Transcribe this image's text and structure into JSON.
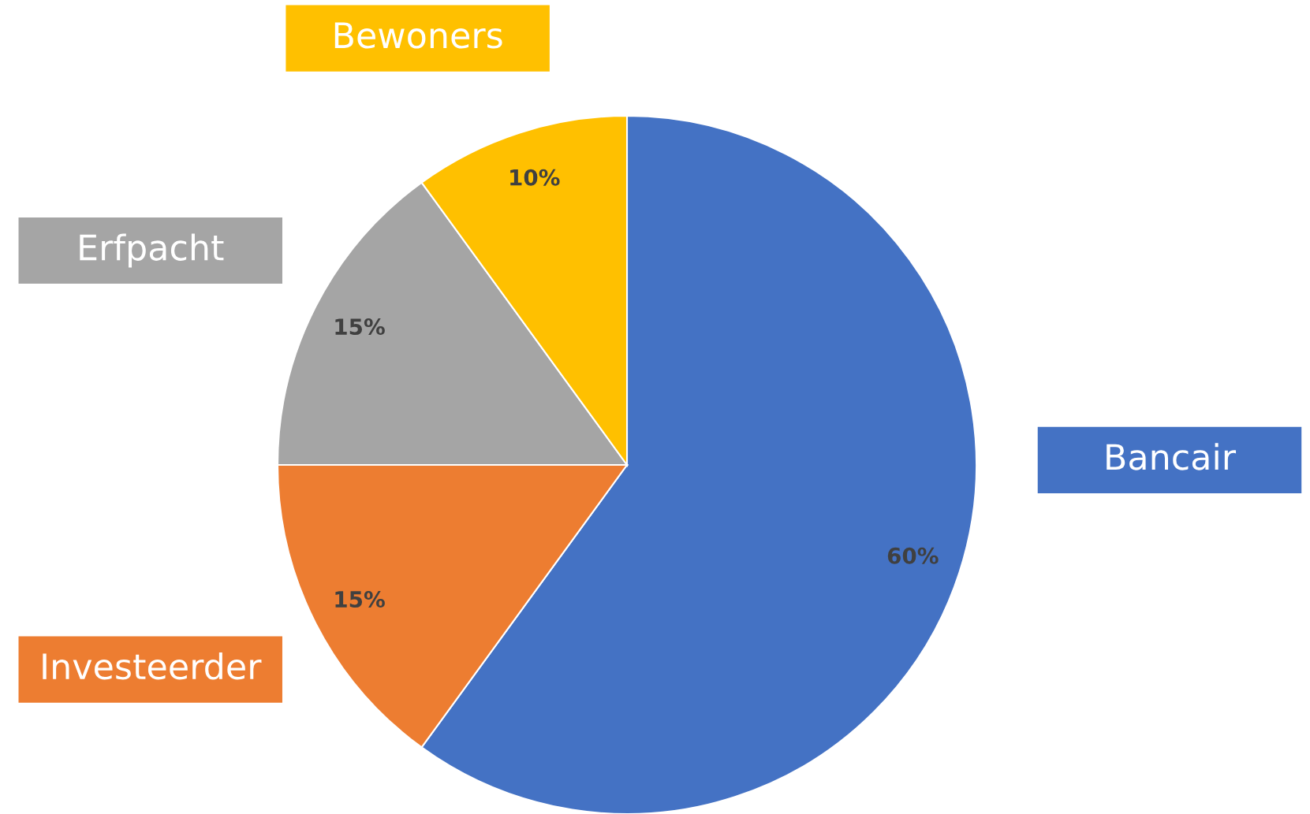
{
  "chart_data": {
    "type": "pie",
    "categories": [
      "Bancair",
      "Investeerder",
      "Erfpacht",
      "Bewoners"
    ],
    "values": [
      60,
      15,
      15,
      10
    ],
    "colors": [
      "#4472c4",
      "#ed7d31",
      "#a5a5a5",
      "#ffc000"
    ],
    "value_labels": [
      "60%",
      "15%",
      "15%",
      "10%"
    ]
  }
}
